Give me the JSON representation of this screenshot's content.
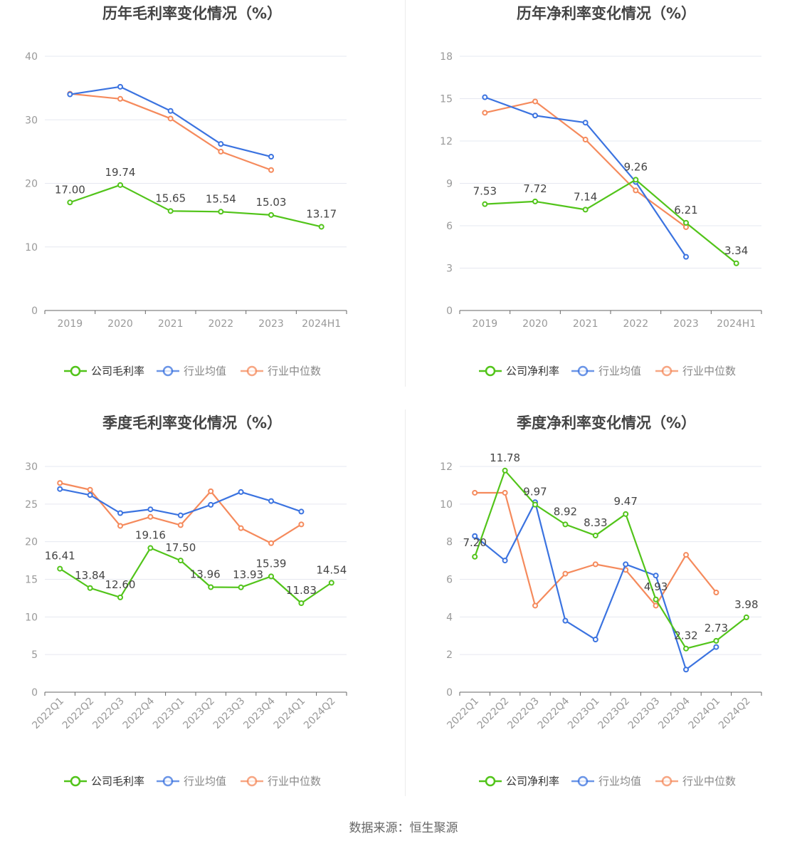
{
  "colors": {
    "company": "#52c41a",
    "industry_avg": "#3b73e0",
    "industry_median": "#f58a5c",
    "grid": "#e6e8f0",
    "axis": "#666666",
    "tick_text": "#999999",
    "title_text": "#444444",
    "label_text": "#444444"
  },
  "footer": "数据来源：恒生聚源",
  "chart_data": [
    {
      "type": "line",
      "title": "历年毛利率变化情况（%）",
      "categories": [
        "2019",
        "2020",
        "2021",
        "2022",
        "2023",
        "2024H1"
      ],
      "ylim": [
        0,
        40
      ],
      "yticks": [
        0,
        10,
        20,
        30,
        40
      ],
      "grid": true,
      "legend_position": "bottom",
      "rotate_xlabels": false,
      "series": [
        {
          "name": "公司毛利率",
          "key": "company",
          "values": [
            17.0,
            19.74,
            15.65,
            15.54,
            15.03,
            13.17
          ],
          "labels": [
            "17.00",
            "19.74",
            "15.65",
            "15.54",
            "15.03",
            "13.17"
          ]
        },
        {
          "name": "行业均值",
          "key": "industry_avg",
          "values": [
            34.0,
            35.2,
            31.4,
            26.2,
            24.2,
            null
          ]
        },
        {
          "name": "行业中位数",
          "key": "industry_median",
          "values": [
            34.1,
            33.3,
            30.2,
            25.0,
            22.1,
            null
          ]
        }
      ]
    },
    {
      "type": "line",
      "title": "历年净利率变化情况（%）",
      "categories": [
        "2019",
        "2020",
        "2021",
        "2022",
        "2023",
        "2024H1"
      ],
      "ylim": [
        0,
        18
      ],
      "yticks": [
        0,
        3,
        6,
        9,
        12,
        15,
        18
      ],
      "grid": true,
      "legend_position": "bottom",
      "rotate_xlabels": false,
      "series": [
        {
          "name": "公司净利率",
          "key": "company",
          "values": [
            7.53,
            7.72,
            7.14,
            9.26,
            6.21,
            3.34
          ],
          "labels": [
            "7.53",
            "7.72",
            "7.14",
            "9.26",
            "6.21",
            "3.34"
          ]
        },
        {
          "name": "行业均值",
          "key": "industry_avg",
          "values": [
            15.1,
            13.8,
            13.3,
            9.1,
            3.8,
            null
          ]
        },
        {
          "name": "行业中位数",
          "key": "industry_median",
          "values": [
            14.0,
            14.8,
            12.1,
            8.5,
            5.9,
            null
          ]
        }
      ]
    },
    {
      "type": "line",
      "title": "季度毛利率变化情况（%）",
      "categories": [
        "2022Q1",
        "2022Q2",
        "2022Q3",
        "2022Q4",
        "2023Q1",
        "2023Q2",
        "2023Q3",
        "2023Q4",
        "2024Q1",
        "2024Q2"
      ],
      "ylim": [
        0,
        30
      ],
      "yticks": [
        0,
        5,
        10,
        15,
        20,
        25,
        30
      ],
      "grid": true,
      "legend_position": "bottom",
      "rotate_xlabels": true,
      "series": [
        {
          "name": "公司毛利率",
          "key": "company",
          "values": [
            16.41,
            13.84,
            12.6,
            19.16,
            17.5,
            13.96,
            13.93,
            15.39,
            11.83,
            14.54
          ],
          "labels": [
            "16.41",
            "13.84",
            "12.60",
            "19.16",
            "17.50",
            "13.96",
            "13.93",
            "15.39",
            "11.83",
            "14.54"
          ]
        },
        {
          "name": "行业均值",
          "key": "industry_avg",
          "values": [
            27.0,
            26.2,
            23.8,
            24.3,
            23.5,
            24.9,
            26.6,
            25.4,
            24.0,
            null
          ]
        },
        {
          "name": "行业中位数",
          "key": "industry_median",
          "values": [
            27.8,
            26.9,
            22.1,
            23.3,
            22.2,
            26.7,
            21.8,
            19.8,
            22.3,
            null
          ]
        }
      ]
    },
    {
      "type": "line",
      "title": "季度净利率变化情况（%）",
      "categories": [
        "2022Q1",
        "2022Q2",
        "2022Q3",
        "2022Q4",
        "2023Q1",
        "2023Q2",
        "2023Q3",
        "2023Q4",
        "2024Q1",
        "2024Q2"
      ],
      "ylim": [
        0,
        12
      ],
      "yticks": [
        0,
        2,
        4,
        6,
        8,
        10,
        12
      ],
      "grid": true,
      "legend_position": "bottom",
      "rotate_xlabels": true,
      "series": [
        {
          "name": "公司净利率",
          "key": "company",
          "values": [
            7.2,
            11.78,
            9.97,
            8.92,
            8.33,
            9.47,
            4.93,
            2.32,
            2.73,
            3.98
          ],
          "labels": [
            "7.20",
            "11.78",
            "9.97",
            "8.92",
            "8.33",
            "9.47",
            "4.93",
            "2.32",
            "2.73",
            "3.98"
          ]
        },
        {
          "name": "行业均值",
          "key": "industry_avg",
          "values": [
            8.3,
            7.0,
            10.1,
            3.8,
            2.8,
            6.8,
            6.2,
            1.2,
            2.4,
            null
          ]
        },
        {
          "name": "行业中位数",
          "key": "industry_median",
          "values": [
            10.6,
            10.6,
            4.6,
            6.3,
            6.8,
            6.5,
            4.6,
            7.3,
            5.3,
            null
          ]
        }
      ]
    }
  ]
}
